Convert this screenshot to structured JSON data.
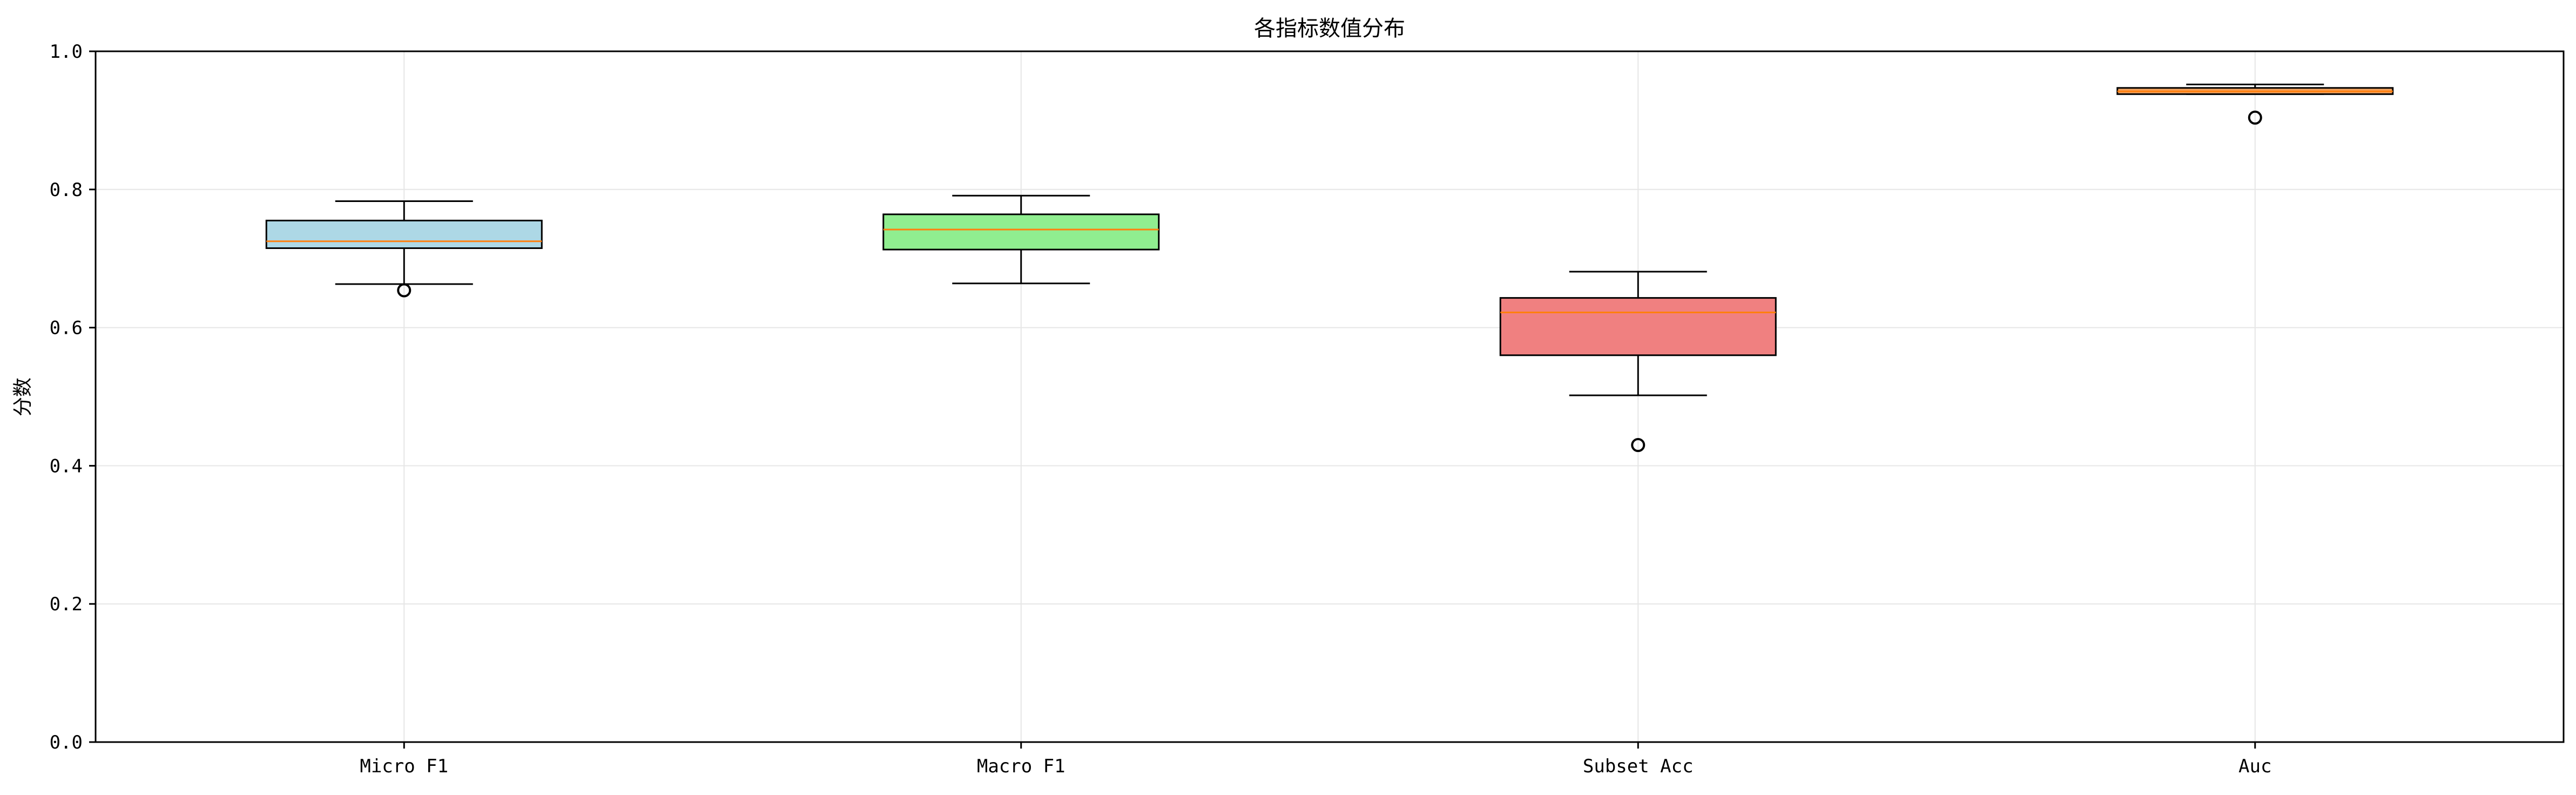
{
  "chart_data": {
    "type": "box",
    "title": "各指标数值分布",
    "xlabel": "",
    "ylabel": "分数",
    "ylim": [
      0.0,
      1.0
    ],
    "yticks": [
      "0.0",
      "0.2",
      "0.4",
      "0.6",
      "0.8",
      "1.0"
    ],
    "grid": true,
    "categories": [
      "Micro F1",
      "Macro F1",
      "Subset Acc",
      "Auc"
    ],
    "boxes": [
      {
        "name": "Micro F1",
        "color": "#add8e6",
        "whisker_low": 0.663,
        "q1": 0.715,
        "median": 0.725,
        "q3": 0.755,
        "whisker_high": 0.783,
        "outliers": [
          0.654
        ]
      },
      {
        "name": "Macro F1",
        "color": "#90ee90",
        "whisker_low": 0.664,
        "q1": 0.713,
        "median": 0.742,
        "q3": 0.764,
        "whisker_high": 0.791,
        "outliers": []
      },
      {
        "name": "Subset Acc",
        "color": "#f08080",
        "whisker_low": 0.502,
        "q1": 0.56,
        "median": 0.622,
        "q3": 0.643,
        "whisker_high": 0.681,
        "outliers": [
          0.43
        ]
      },
      {
        "name": "Auc",
        "color": "#f4a460",
        "whisker_low": 0.938,
        "q1": 0.938,
        "median": 0.942,
        "q3": 0.947,
        "whisker_high": 0.952,
        "outliers": [
          0.904
        ]
      }
    ],
    "median_color": "#ff7f0e"
  }
}
